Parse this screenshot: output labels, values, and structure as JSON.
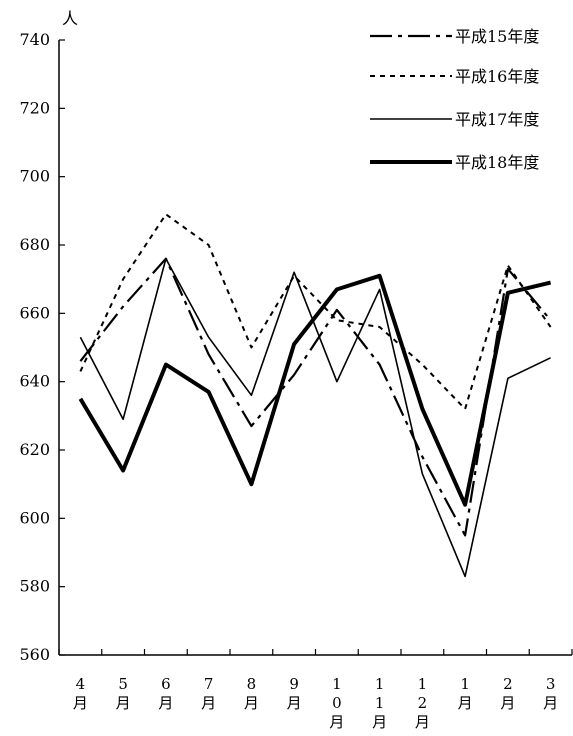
{
  "chart_data": {
    "type": "line",
    "ylabel": "人",
    "ylim": [
      560,
      740
    ],
    "yticks": [
      560,
      580,
      600,
      620,
      640,
      660,
      680,
      700,
      720,
      740
    ],
    "categories": [
      "4月",
      "5月",
      "6月",
      "7月",
      "8月",
      "9月",
      "10月",
      "11月",
      "12月",
      "1月",
      "2月",
      "3月"
    ],
    "category_labels": [
      [
        "4",
        "月"
      ],
      [
        "5",
        "月"
      ],
      [
        "6",
        "月"
      ],
      [
        "7",
        "月"
      ],
      [
        "8",
        "月"
      ],
      [
        "9",
        "月"
      ],
      [
        "1",
        "0",
        "月"
      ],
      [
        "1",
        "1",
        "月"
      ],
      [
        "1",
        "2",
        "月"
      ],
      [
        "1",
        "月"
      ],
      [
        "2",
        "月"
      ],
      [
        "3",
        "月"
      ]
    ],
    "series": [
      {
        "name": "平成15年度",
        "style": "dash-dot",
        "values": [
          646,
          662,
          676,
          648,
          627,
          642,
          661,
          645,
          618,
          595,
          673,
          658
        ]
      },
      {
        "name": "平成16年度",
        "style": "dotted",
        "values": [
          643,
          670,
          689,
          680,
          650,
          671,
          658,
          656,
          645,
          632,
          674,
          656
        ]
      },
      {
        "name": "平成17年度",
        "style": "thin",
        "values": [
          653,
          629,
          676,
          653,
          636,
          672,
          640,
          667,
          613,
          583,
          641,
          647
        ]
      },
      {
        "name": "平成18年度",
        "style": "thick",
        "values": [
          635,
          614,
          645,
          637,
          610,
          651,
          667,
          671,
          632,
          604,
          666,
          669
        ]
      }
    ],
    "grid": false,
    "legend": "top-right",
    "colors": {
      "line": "#000000",
      "background": "#ffffff"
    }
  }
}
